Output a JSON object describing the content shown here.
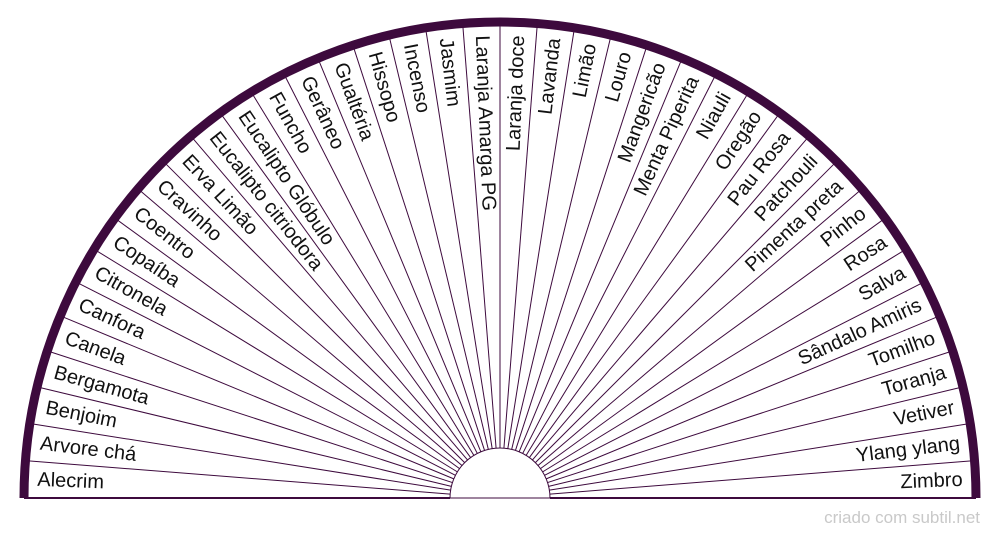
{
  "colors": {
    "frame": "#3d0a3d",
    "text": "#111111",
    "credit": "#c9c9c9"
  },
  "diagram": {
    "type": "semicircle-pendulum-chart",
    "labels": [
      "Alecrim",
      "Arvore chá",
      "Benjoim",
      "Bergamota",
      "Canela",
      "Canfora",
      "Citronela",
      "Copaíba",
      "Coentro",
      "Cravinho",
      "Erva Limão",
      "Eucalipto citriodora",
      "Eucalipto Glóbulo",
      "Funcho",
      "Gerâneo",
      "Gualtéria",
      "Hissopo",
      "Incenso",
      "Jasmim",
      "Laranja Amarga PG",
      "Laranja doce",
      "Lavanda",
      "Limão",
      "Louro",
      "Mangericão",
      "Menta Piperita",
      "Niauli",
      "Oregão",
      "Pau Rosa",
      "Patchouli",
      "Pimenta preta",
      "Pinho",
      "Rosa",
      "Salva",
      "Sândalo Amiris",
      "Tomilho",
      "Toranja",
      "Vetiver",
      "Ylang ylang",
      "Zimbro"
    ]
  },
  "footer": {
    "credit": "criado com subtil.net"
  }
}
